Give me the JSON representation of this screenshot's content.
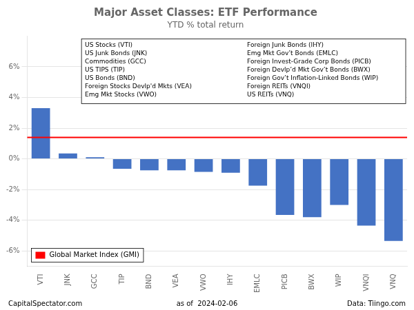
{
  "chart_data": {
    "type": "bar",
    "title": "Major Asset Classes: ETF Performance",
    "subtitle": "YTD % total return",
    "categories": [
      "VTI",
      "JNK",
      "GCC",
      "TIP",
      "BND",
      "VEA",
      "VWO",
      "IHY",
      "EMLC",
      "PICB",
      "BWX",
      "WIP",
      "VNQI",
      "VNQ"
    ],
    "values": [
      3.3,
      0.35,
      0.1,
      -0.65,
      -0.75,
      -0.75,
      -0.85,
      -0.9,
      -1.75,
      -3.65,
      -3.8,
      -3.0,
      -4.35,
      -5.35
    ],
    "color": "#4472C4",
    "ylim": [
      -7,
      8
    ],
    "yticks": [
      {
        "value": -6,
        "label": "-6%"
      },
      {
        "value": -4,
        "label": "-4%"
      },
      {
        "value": -2,
        "label": "-2%"
      },
      {
        "value": 0,
        "label": "0%"
      },
      {
        "value": 2,
        "label": "2%"
      },
      {
        "value": 4,
        "label": "4%"
      },
      {
        "value": 6,
        "label": "6%"
      }
    ],
    "grid": true,
    "legend": "lower left",
    "reference_line": {
      "name": "Global Market Index (GMI)",
      "value": 1.4,
      "color": "#FF0000"
    },
    "annotations": [
      [
        "US Stocks (VTI)",
        "US Junk Bonds (JNK)",
        "Commodities (GCC)",
        "US TIPS (TIP)",
        "US Bonds (BND)",
        "Foreign Stocks Devlp'd Mkts (VEA)",
        "Emg Mkt Stocks (VWO)"
      ],
      [
        "Foreign Junk Bonds (IHY)",
        "Emg Mkt Gov’t Bonds (EMLC)",
        "Foreign Invest-Grade Corp Bonds (PICB)",
        "Foreign Devlp’d Mkt Gov’t Bonds (BWX)",
        "Foreign Gov’t Inflation-Linked Bonds (WIP)",
        "Foreign REITs (VNQI)",
        "US REITs (VNQ)"
      ]
    ],
    "footer": [
      "CapitalSpectator.com",
      "as of  2024-02-06",
      "Data: Tiingo.com"
    ]
  }
}
